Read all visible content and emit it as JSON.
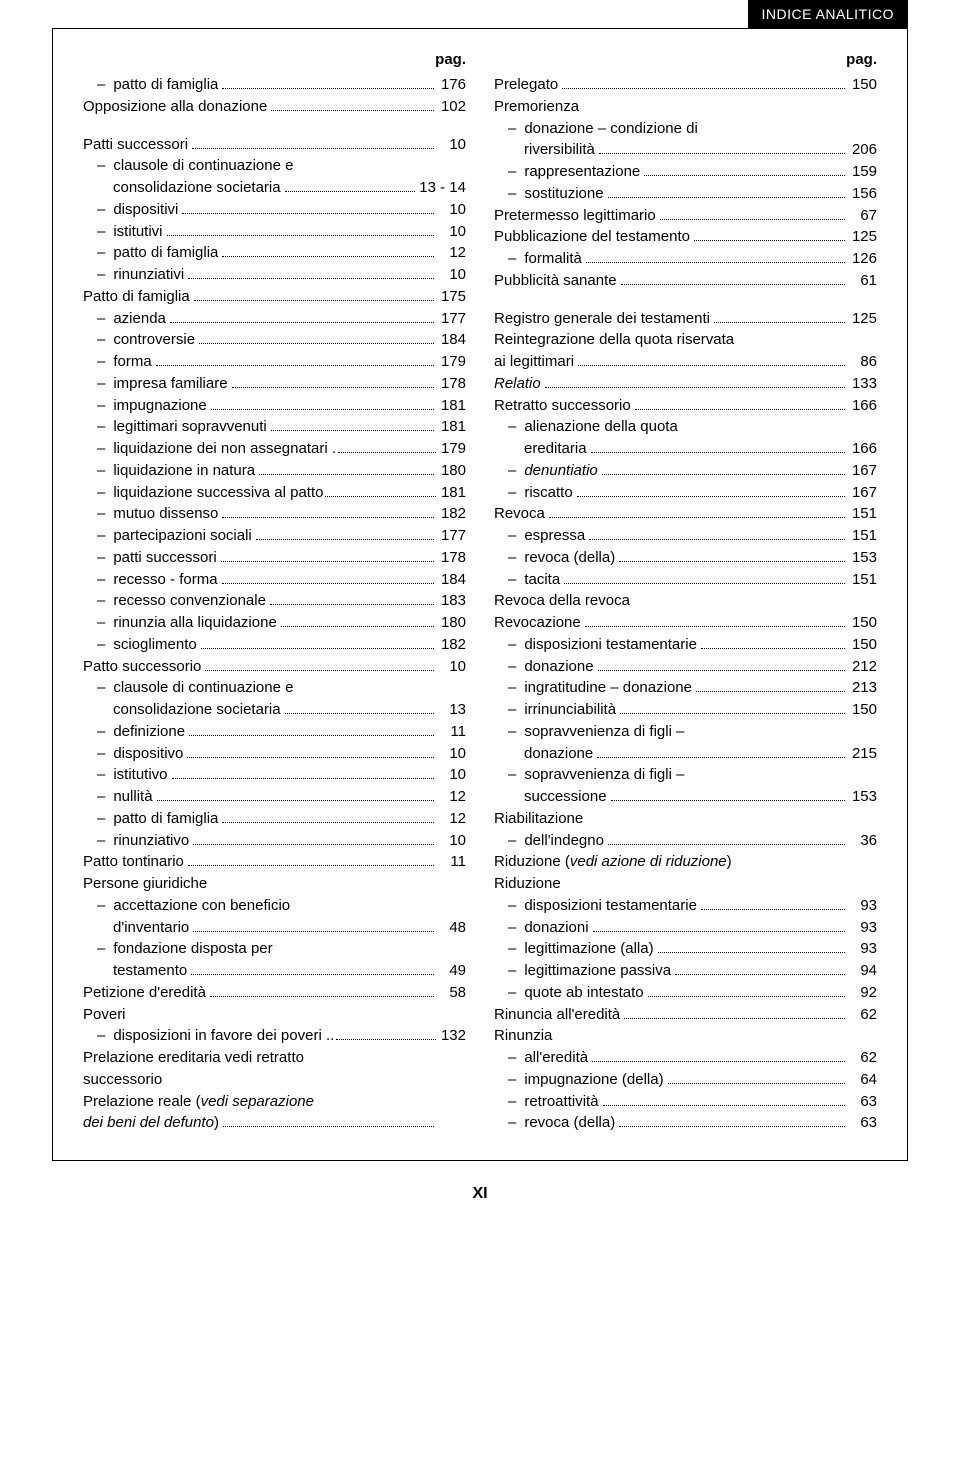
{
  "header": {
    "title": "INDICE ANALITICO"
  },
  "pag_label": "pag.",
  "footer": {
    "roman": "XI"
  },
  "left": [
    {
      "label": "patto di famiglia",
      "page": "176",
      "indent": true
    },
    {
      "label": "Opposizione alla donazione",
      "page": "102",
      "indent": false
    },
    {
      "spacer": true
    },
    {
      "label": "Patti successori",
      "page": "10",
      "indent": false
    },
    {
      "label": "clausole di continuazione e",
      "indent": true,
      "no_page": true
    },
    {
      "label": "consolidazione societaria",
      "page": "13 - 14",
      "indent": false,
      "cont": true
    },
    {
      "label": "dispositivi",
      "page": "10",
      "indent": true
    },
    {
      "label": "istitutivi",
      "page": "10",
      "indent": true
    },
    {
      "label": "patto di famiglia",
      "page": "12",
      "indent": true
    },
    {
      "label": "rinunziativi",
      "page": "10",
      "indent": true
    },
    {
      "label": "Patto di famiglia",
      "page": "175",
      "indent": false
    },
    {
      "label": "azienda",
      "page": "177",
      "indent": true
    },
    {
      "label": "controversie",
      "page": "184",
      "indent": true
    },
    {
      "label": "forma",
      "page": "179",
      "indent": true
    },
    {
      "label": "impresa familiare",
      "page": "178",
      "indent": true
    },
    {
      "label": "impugnazione",
      "page": "181",
      "indent": true
    },
    {
      "label": "legittimari sopravvenuti",
      "page": "181",
      "indent": true
    },
    {
      "label": "liquidazione dei non assegnatari .",
      "page": "179",
      "indent": true,
      "tightdots": true
    },
    {
      "label": "liquidazione in natura",
      "page": "180",
      "indent": true
    },
    {
      "label": "liquidazione successiva al patto",
      "page": "181",
      "indent": true,
      "tightdots": true
    },
    {
      "label": "mutuo dissenso",
      "page": "182",
      "indent": true
    },
    {
      "label": "partecipazioni sociali",
      "page": "177",
      "indent": true
    },
    {
      "label": "patti successori",
      "page": "178",
      "indent": true
    },
    {
      "label": "recesso - forma",
      "page": "184",
      "indent": true
    },
    {
      "label": "recesso convenzionale",
      "page": "183",
      "indent": true
    },
    {
      "label": "rinunzia alla liquidazione",
      "page": "180",
      "indent": true
    },
    {
      "label": "scioglimento",
      "page": "182",
      "indent": true
    },
    {
      "label": "Patto successorio",
      "page": "10",
      "indent": false
    },
    {
      "label": "clausole di continuazione e",
      "indent": true,
      "no_page": true
    },
    {
      "label": "consolidazione societaria",
      "page": "13",
      "indent": false,
      "cont": true
    },
    {
      "label": "definizione",
      "page": "11",
      "indent": true
    },
    {
      "label": "dispositivo",
      "page": "10",
      "indent": true
    },
    {
      "label": "istitutivo",
      "page": "10",
      "indent": true
    },
    {
      "label": "nullità",
      "page": "12",
      "indent": true
    },
    {
      "label": "patto di famiglia",
      "page": "12",
      "indent": true
    },
    {
      "label": "rinunziativo",
      "page": "10",
      "indent": true
    },
    {
      "label": "Patto tontinario",
      "page": "11",
      "indent": false
    },
    {
      "label": "Persone giuridiche",
      "indent": false,
      "no_page": true
    },
    {
      "label": "accettazione con beneficio",
      "indent": true,
      "no_page": true
    },
    {
      "label": "d'inventario",
      "page": "48",
      "indent": false,
      "cont": true
    },
    {
      "label": "fondazione disposta per",
      "indent": true,
      "no_page": true
    },
    {
      "label": "testamento",
      "page": "49",
      "indent": false,
      "cont": true
    },
    {
      "label": "Petizione d'eredità",
      "page": "58",
      "indent": false
    },
    {
      "label": "Poveri",
      "indent": false,
      "no_page": true
    },
    {
      "label": "disposizioni in favore dei poveri ..",
      "page": "132",
      "indent": true,
      "tightdots": true
    },
    {
      "label": "Prelazione ereditaria vedi retratto",
      "indent": false,
      "no_page": true
    },
    {
      "label": "successorio",
      "indent": false,
      "no_page": true
    },
    {
      "label_html": "Prelazione reale (<span class='italic'>vedi separazione</span>",
      "indent": false,
      "no_page": true
    },
    {
      "label_html": "<span class='italic'>dei beni del defunto</span>)",
      "page": "",
      "indent": false,
      "dots_only": true
    }
  ],
  "right": [
    {
      "label": "Prelegato",
      "page": "150",
      "indent": false
    },
    {
      "label": "Premorienza",
      "indent": false,
      "no_page": true
    },
    {
      "label": "donazione – condizione di",
      "indent": true,
      "no_page": true
    },
    {
      "label": "riversibilità",
      "page": "206",
      "indent": false,
      "cont": true
    },
    {
      "label": "rappresentazione",
      "page": "159",
      "indent": true
    },
    {
      "label": "sostituzione",
      "page": "156",
      "indent": true
    },
    {
      "label": "Pretermesso legittimario",
      "page": "67",
      "indent": false
    },
    {
      "label": "Pubblicazione del testamento",
      "page": "125",
      "indent": false
    },
    {
      "label": "formalità",
      "page": "126",
      "indent": true
    },
    {
      "label": "Pubblicità sanante",
      "page": "61",
      "indent": false
    },
    {
      "spacer": true
    },
    {
      "label": "Registro generale dei testamenti",
      "page": "125",
      "indent": false
    },
    {
      "label": "Reintegrazione della quota riservata",
      "indent": false,
      "no_page": true
    },
    {
      "label": "ai legittimari",
      "page": "86",
      "indent": false
    },
    {
      "label_html": "<span class='italic'>Relatio</span>",
      "page": "133",
      "indent": false
    },
    {
      "label": "Retratto successorio",
      "page": "166",
      "indent": false
    },
    {
      "label": "alienazione della quota",
      "indent": true,
      "no_page": true
    },
    {
      "label": "ereditaria",
      "page": "166",
      "indent": false,
      "cont": true
    },
    {
      "label_html": "<span class='italic'>denuntiatio</span>",
      "page": "167",
      "indent": true
    },
    {
      "label": "riscatto",
      "page": "167",
      "indent": true
    },
    {
      "label": "Revoca",
      "page": "151",
      "indent": false
    },
    {
      "label": "espressa",
      "page": "151",
      "indent": true
    },
    {
      "label": "revoca (della)",
      "page": "153",
      "indent": true
    },
    {
      "label": "tacita",
      "page": "151",
      "indent": true
    },
    {
      "label": "Revoca della revoca",
      "indent": false,
      "no_page": true
    },
    {
      "label": "Revocazione",
      "page": "150",
      "indent": false
    },
    {
      "label": "disposizioni testamentarie",
      "page": "150",
      "indent": true
    },
    {
      "label": "donazione",
      "page": "212",
      "indent": true
    },
    {
      "label": "ingratitudine – donazione",
      "page": "213",
      "indent": true
    },
    {
      "label": "irrinunciabilità",
      "page": "150",
      "indent": true
    },
    {
      "label": "sopravvenienza di figli –",
      "indent": true,
      "no_page": true
    },
    {
      "label": "donazione",
      "page": "215",
      "indent": false,
      "cont": true
    },
    {
      "label": "sopravvenienza di figli –",
      "indent": true,
      "no_page": true
    },
    {
      "label": "successione",
      "page": "153",
      "indent": false,
      "cont": true
    },
    {
      "label": "Riabilitazione",
      "indent": false,
      "no_page": true
    },
    {
      "label": "dell'indegno",
      "page": "36",
      "indent": true
    },
    {
      "label_html": "Riduzione (<span class='italic'>vedi azione di riduzione</span>)",
      "indent": false,
      "no_page": true
    },
    {
      "label": "Riduzione",
      "indent": false,
      "no_page": true
    },
    {
      "label": "disposizioni testamentarie",
      "page": "93",
      "indent": true
    },
    {
      "label": "donazioni",
      "page": "93",
      "indent": true
    },
    {
      "label": "legittimazione (alla)",
      "page": "93",
      "indent": true
    },
    {
      "label": "legittimazione passiva",
      "page": "94",
      "indent": true
    },
    {
      "label": "quote ab intestato",
      "page": "92",
      "indent": true
    },
    {
      "label": "Rinuncia all'eredità",
      "page": "62",
      "indent": false
    },
    {
      "label": "Rinunzia",
      "indent": false,
      "no_page": true
    },
    {
      "label": "all'eredità",
      "page": "62",
      "indent": true
    },
    {
      "label": "impugnazione (della)",
      "page": "64",
      "indent": true
    },
    {
      "label": "retroattività",
      "page": "63",
      "indent": true
    },
    {
      "label": "revoca (della)",
      "page": "63",
      "indent": true
    }
  ]
}
